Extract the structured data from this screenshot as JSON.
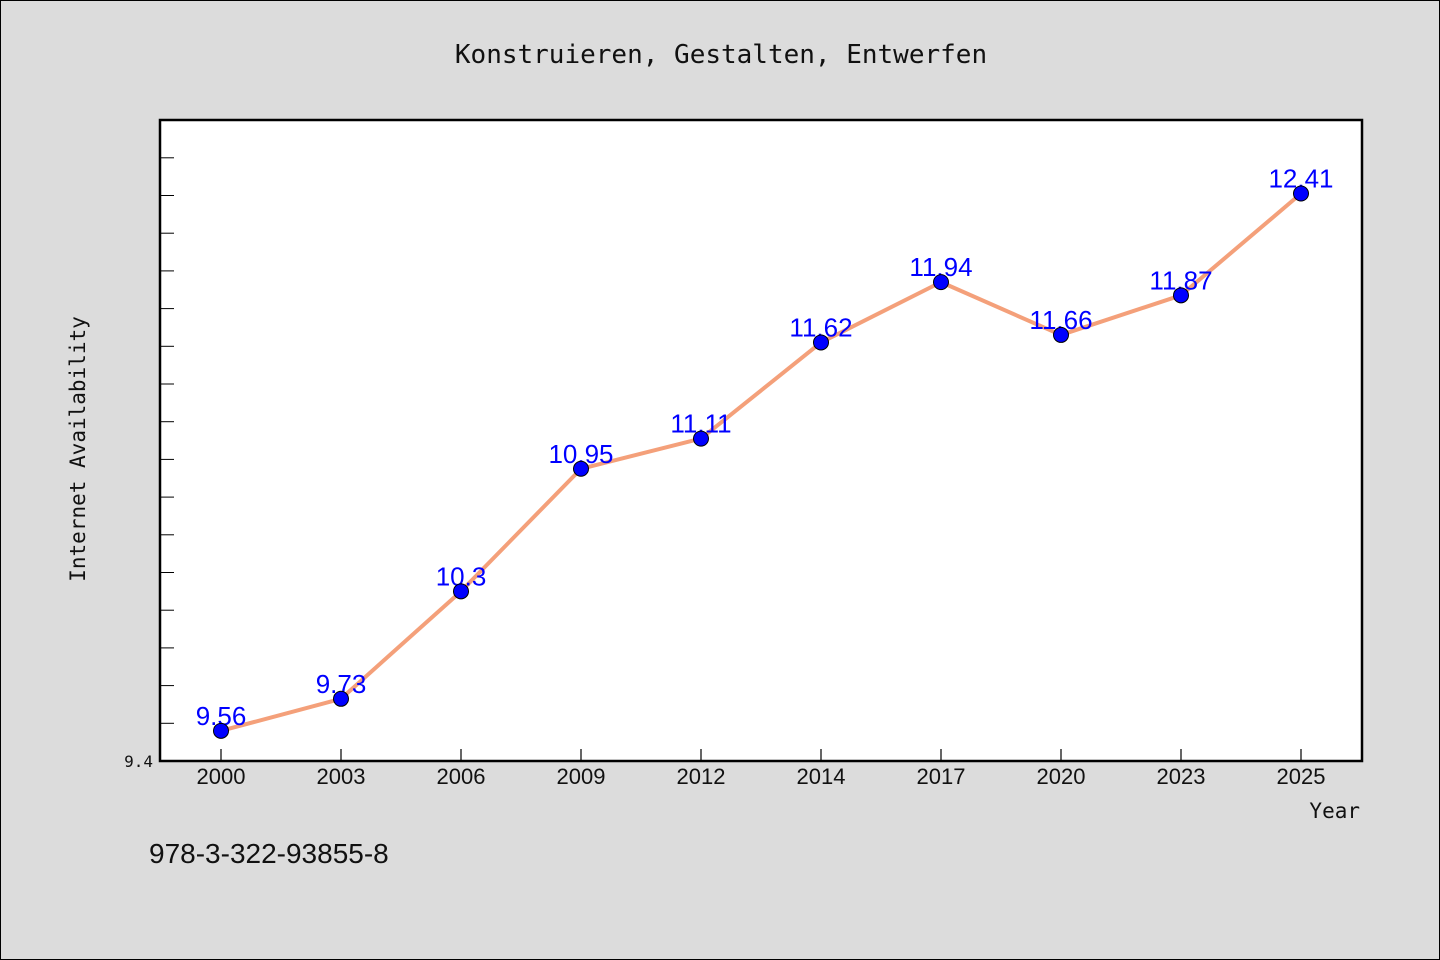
{
  "chart_data": {
    "type": "line",
    "title": "Konstruieren, Gestalten, Entwerfen",
    "xlabel": "Year",
    "ylabel": "Internet Availability",
    "categories": [
      "2000",
      "2003",
      "2006",
      "2009",
      "2012",
      "2014",
      "2017",
      "2020",
      "2023",
      "2025"
    ],
    "series": [
      {
        "values": [
          9.56,
          9.73,
          10.3,
          10.95,
          11.11,
          11.62,
          11.94,
          11.66,
          11.87,
          12.41
        ],
        "data_labels": [
          "9.56",
          "9.73",
          "10.3",
          "10.95",
          "11.11",
          "11.62",
          "11.94",
          "11.66",
          "11.87",
          "12.41"
        ],
        "line_color": "#f4a07a",
        "marker_color": "#0000ff"
      }
    ],
    "yticks_labeled": [
      "9.4"
    ],
    "ylim": [
      9.4,
      12.8
    ],
    "grid": false,
    "legend": "none"
  },
  "footer": {
    "isbn": "978-3-322-93855-8"
  },
  "colors": {
    "background": "#dcdcdc",
    "plot_area": "#ffffff",
    "data_label": "#0000ff"
  }
}
